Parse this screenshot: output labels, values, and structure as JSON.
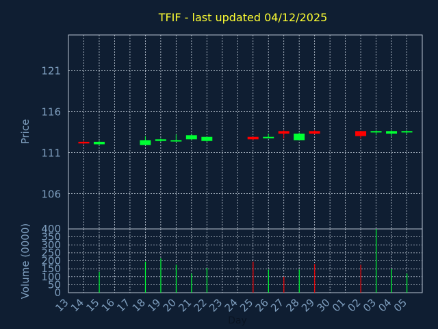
{
  "colors": {
    "background": "#0f1e32",
    "panel_border": "#b8c4d2",
    "grid": "#c8d2de",
    "title": "#ffff33",
    "axis_text": "#7f9fbf",
    "up": "#00ff33",
    "down": "#ff0000"
  },
  "chart_data": [
    {
      "type": "candlestick",
      "title": "TFIF - last updated 04/12/2025",
      "ylabel": "Price",
      "ylim": [
        101.7,
        125.3
      ],
      "yticks": [
        106,
        111,
        116,
        121
      ],
      "grid": true,
      "x": [
        "13",
        "14",
        "15",
        "16",
        "17",
        "18",
        "19",
        "20",
        "21",
        "22",
        "23",
        "24",
        "25",
        "26",
        "27",
        "28",
        "29",
        "30",
        "01",
        "02",
        "03",
        "04",
        "05"
      ],
      "candles": [
        {
          "x": "13",
          "open": 112.3,
          "high": 112.4,
          "low": 112.0,
          "close": 112.1
        },
        {
          "x": "14",
          "open": 112.0,
          "high": 112.4,
          "low": 111.9,
          "close": 112.3
        },
        {
          "x": "17",
          "open": 111.9,
          "high": 113.0,
          "low": 111.9,
          "close": 112.5
        },
        {
          "x": "18",
          "open": 112.4,
          "high": 112.7,
          "low": 112.3,
          "close": 112.6
        },
        {
          "x": "19",
          "open": 112.4,
          "high": 113.2,
          "low": 112.3,
          "close": 112.5
        },
        {
          "x": "20",
          "open": 112.6,
          "high": 113.2,
          "low": 112.5,
          "close": 113.1
        },
        {
          "x": "21",
          "open": 112.4,
          "high": 112.9,
          "low": 112.3,
          "close": 112.9
        },
        {
          "x": "24",
          "open": 112.9,
          "high": 112.9,
          "low": 112.5,
          "close": 112.6
        },
        {
          "x": "25",
          "open": 112.8,
          "high": 113.3,
          "low": 112.7,
          "close": 112.9
        },
        {
          "x": "26",
          "open": 113.6,
          "high": 113.7,
          "low": 112.7,
          "close": 113.3
        },
        {
          "x": "27",
          "open": 112.5,
          "high": 113.4,
          "low": 112.5,
          "close": 113.3
        },
        {
          "x": "28",
          "open": 113.6,
          "high": 113.7,
          "low": 113.2,
          "close": 113.3
        },
        {
          "x": "01",
          "open": 113.6,
          "high": 113.6,
          "low": 112.7,
          "close": 113.0
        },
        {
          "x": "02",
          "open": 113.5,
          "high": 113.7,
          "low": 113.1,
          "close": 113.6
        },
        {
          "x": "03",
          "open": 113.3,
          "high": 113.7,
          "low": 113.0,
          "close": 113.6
        },
        {
          "x": "04",
          "open": 113.5,
          "high": 113.7,
          "low": 113.2,
          "close": 113.6
        }
      ]
    },
    {
      "type": "bar",
      "ylabel": "Volume (0000)",
      "xlabel": "Day",
      "ylim": [
        0,
        400
      ],
      "yticks": [
        0,
        50,
        100,
        150,
        200,
        250,
        300,
        350,
        400
      ],
      "grid": true,
      "x": [
        "13",
        "14",
        "15",
        "16",
        "17",
        "18",
        "19",
        "20",
        "21",
        "22",
        "23",
        "24",
        "25",
        "26",
        "27",
        "28",
        "29",
        "30",
        "01",
        "02",
        "03",
        "04",
        "05"
      ],
      "bars": [
        {
          "x": "14",
          "value": 130,
          "direction": "up"
        },
        {
          "x": "17",
          "value": 195,
          "direction": "up"
        },
        {
          "x": "18",
          "value": 215,
          "direction": "up"
        },
        {
          "x": "19",
          "value": 175,
          "direction": "up"
        },
        {
          "x": "20",
          "value": 120,
          "direction": "up"
        },
        {
          "x": "21",
          "value": 155,
          "direction": "up"
        },
        {
          "x": "24",
          "value": 195,
          "direction": "down"
        },
        {
          "x": "25",
          "value": 145,
          "direction": "up"
        },
        {
          "x": "26",
          "value": 100,
          "direction": "down"
        },
        {
          "x": "27",
          "value": 145,
          "direction": "up"
        },
        {
          "x": "28",
          "value": 180,
          "direction": "down"
        },
        {
          "x": "01",
          "value": 175,
          "direction": "down"
        },
        {
          "x": "02",
          "value": 400,
          "direction": "up"
        },
        {
          "x": "03",
          "value": 150,
          "direction": "up"
        },
        {
          "x": "04",
          "value": 120,
          "direction": "up"
        }
      ]
    }
  ]
}
